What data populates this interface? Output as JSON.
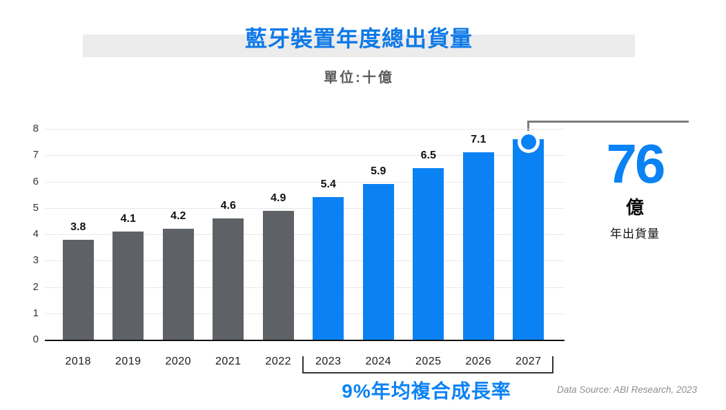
{
  "header": {
    "title": "藍牙裝置年度總出貨量",
    "subtitle": "單位:十億"
  },
  "chart_data": {
    "type": "bar",
    "title": "藍牙裝置年度總出貨量",
    "unit_note": "單位:十億",
    "categories": [
      "2018",
      "2019",
      "2020",
      "2021",
      "2022",
      "2023",
      "2024",
      "2025",
      "2026",
      "2027"
    ],
    "values": [
      3.8,
      4.1,
      4.2,
      4.6,
      4.9,
      5.4,
      5.9,
      6.5,
      7.1,
      7.6
    ],
    "data_labels": [
      "3.8",
      "4.1",
      "4.2",
      "4.6",
      "4.9",
      "5.4",
      "5.9",
      "6.5",
      "7.1",
      null
    ],
    "bar_colors": [
      "#5e6165",
      "#5e6165",
      "#5e6165",
      "#5e6165",
      "#5e6165",
      "#0b82f4",
      "#0b82f4",
      "#0b82f4",
      "#0b82f4",
      "#0b82f4"
    ],
    "ylim": [
      0,
      8
    ],
    "yticks": [
      0,
      1,
      2,
      3,
      4,
      5,
      6,
      7,
      8
    ],
    "xlabel": "",
    "ylabel": "",
    "grid": "horizontal",
    "legend": "none",
    "marker": {
      "category": "2027",
      "shape": "circle",
      "fill": "#0b82f4",
      "ring": "#ffffff"
    }
  },
  "callout": {
    "big_number": "76",
    "unit": "億",
    "caption": "年出貨量",
    "accent_color": "#0b82f4"
  },
  "annotations": {
    "cagr_label": "9%年均複合成長率",
    "cagr_range": [
      "2023",
      "2027"
    ],
    "source": "Data Source: ABI Research, 2023"
  },
  "colors": {
    "historical_bar": "#5e6165",
    "forecast_bar": "#0b82f4",
    "title_blue": "#0e79e8",
    "accent_blue": "#0b82f4",
    "title_band": "#ececec",
    "gridline": "#e9e9e9",
    "axis": "#111111",
    "connector": "#7b7b7b",
    "source_text": "#8e8e8e"
  }
}
